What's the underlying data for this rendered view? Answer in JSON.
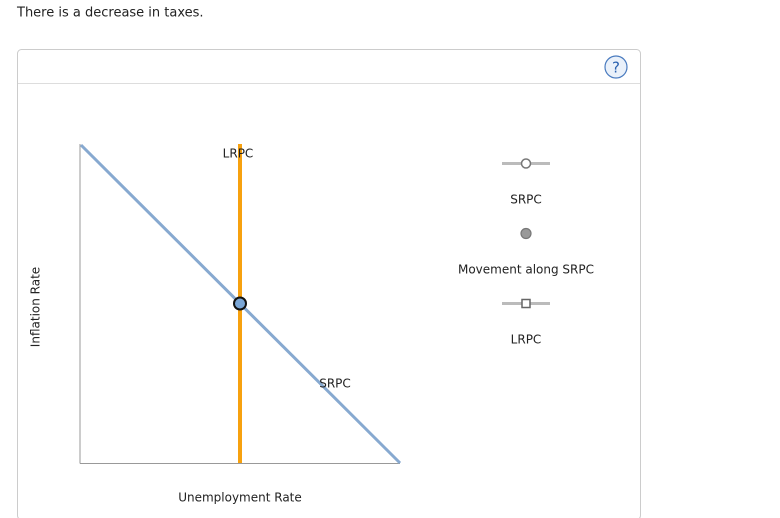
{
  "prompt": "There is a decrease in taxes.",
  "help_button": "?",
  "graph": {
    "y_axis_label": "Inflation Rate",
    "x_axis_label": "Unemployment Rate",
    "curves": [
      {
        "label": "LRPC"
      },
      {
        "label": "SRPC"
      }
    ]
  },
  "legend": [
    {
      "label": "SRPC"
    },
    {
      "label": "Movement along SRPC"
    },
    {
      "label": "LRPC"
    }
  ]
}
